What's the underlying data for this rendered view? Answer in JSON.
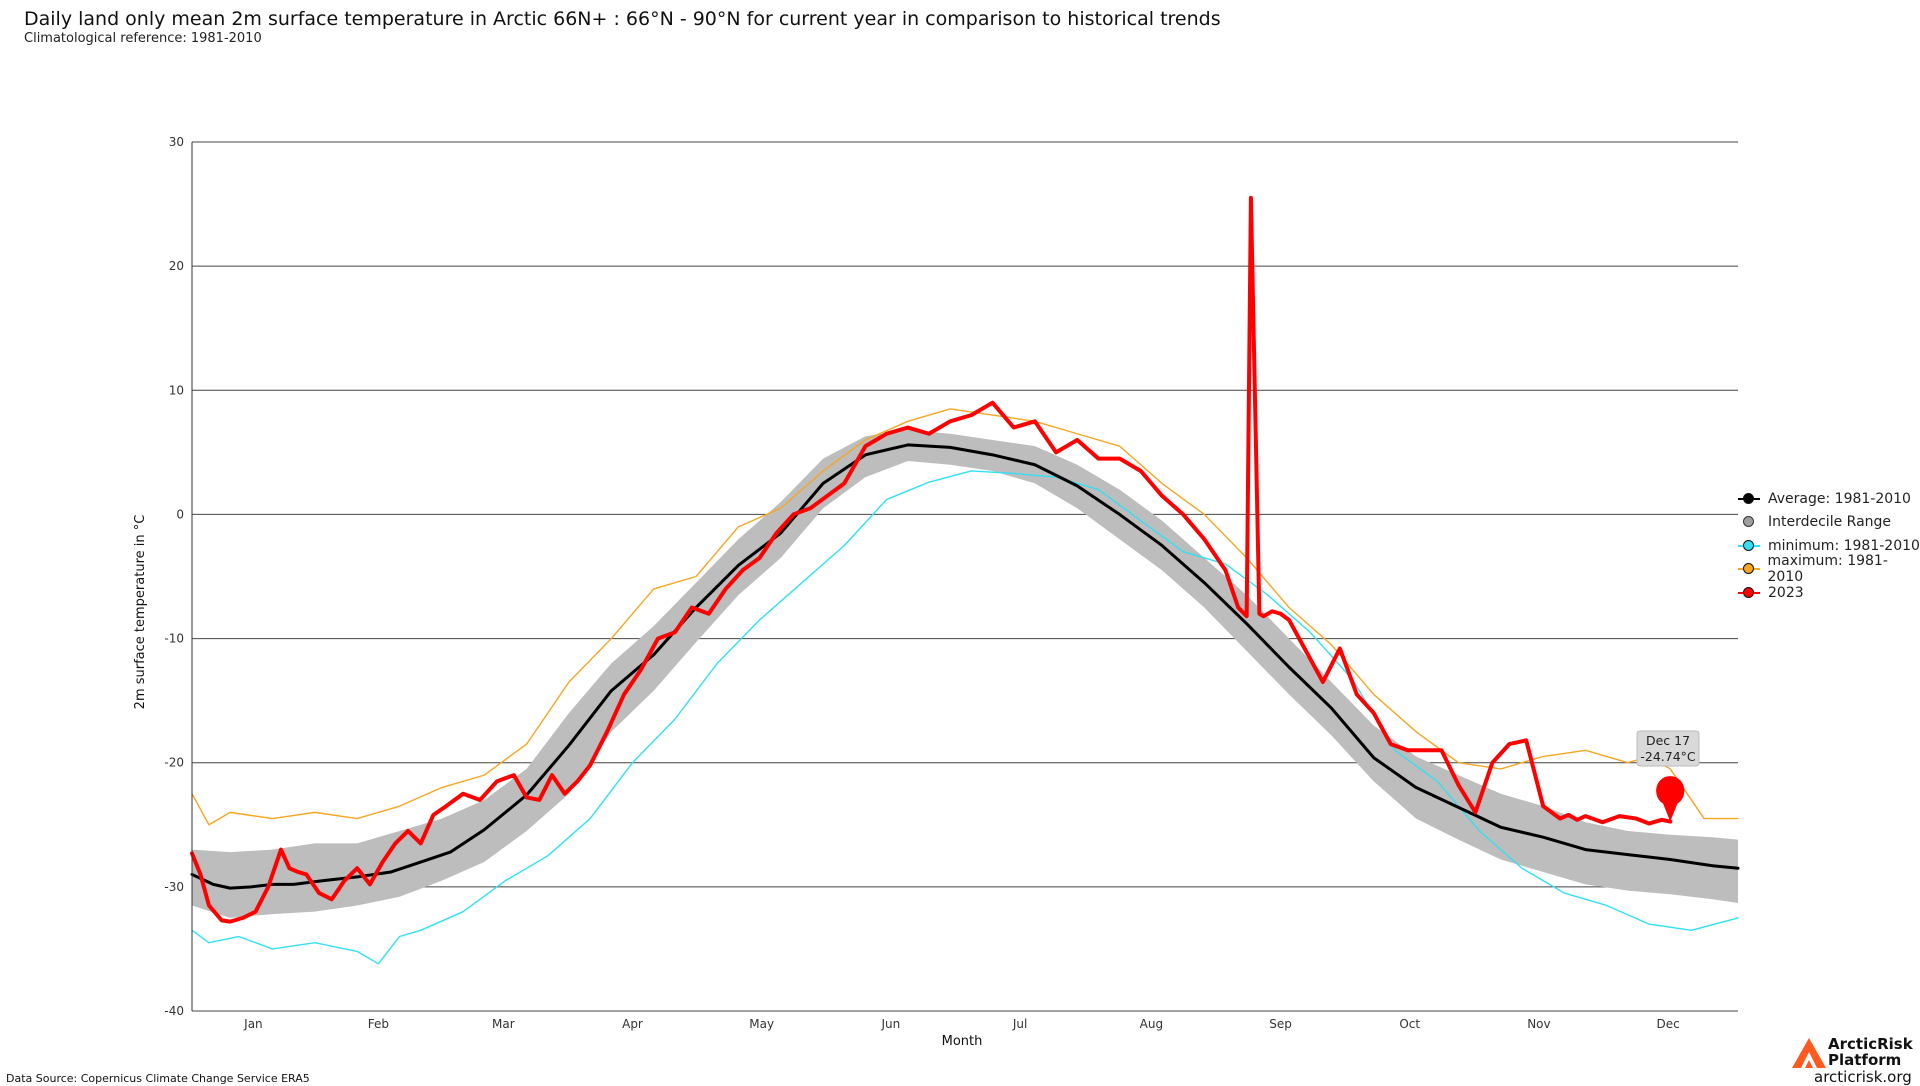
{
  "header": {
    "title": "Daily land only mean 2m surface temperature in Arctic 66N+ : 66°N - 90°N for current year in comparison to historical trends",
    "subtitle": "Climatological reference: 1981-2010"
  },
  "footer": {
    "source": "Data Source: Copernicus Climate Change Service ERA5",
    "logo_line1": "ArcticRisk",
    "logo_line2": "Platform",
    "logo_url": "arcticrisk.org"
  },
  "tooltip": {
    "date": "Dec 17",
    "value": "-24.74°C"
  },
  "colors": {
    "average": "#000000",
    "range": "#bdbdbd",
    "minimum": "#33e0f2",
    "maximum": "#f5a623",
    "current": "#ff0000",
    "grid": "#444444"
  },
  "chart_data": {
    "type": "line",
    "xlabel": "Month",
    "ylabel": "2m surface temperature in °C",
    "ylim": [
      -40,
      30
    ],
    "yticks": [
      30,
      20,
      10,
      0,
      -10,
      -20,
      -30,
      -40
    ],
    "xlim": [
      1,
      366
    ],
    "month_labels": [
      "Jan",
      "Feb",
      "Mar",
      "Apr",
      "May",
      "Jun",
      "Jul",
      "Aug",
      "Sep",
      "Oct",
      "Nov",
      "Dec"
    ],
    "grid": true,
    "legend_position": "right",
    "legend": [
      {
        "key": "average",
        "label": "Average: 1981-2010"
      },
      {
        "key": "range",
        "label": "Interdecile Range"
      },
      {
        "key": "minimum",
        "label": "minimum: 1981-2010"
      },
      {
        "key": "maximum",
        "label": "maximum: 1981-2010"
      },
      {
        "key": "current",
        "label": "2023"
      }
    ],
    "series": [
      {
        "name": "Average: 1981-2010",
        "key": "average",
        "x": [
          1,
          6,
          10,
          15,
          20,
          25,
          32,
          40,
          48,
          55,
          62,
          70,
          80,
          90,
          100,
          110,
          120,
          130,
          140,
          150,
          160,
          170,
          180,
          190,
          200,
          210,
          220,
          230,
          240,
          250,
          260,
          270,
          280,
          290,
          300,
          310,
          320,
          330,
          340,
          350,
          360,
          366
        ],
        "y": [
          -29.0,
          -29.8,
          -30.1,
          -30.0,
          -29.8,
          -29.8,
          -29.5,
          -29.2,
          -28.8,
          -28.0,
          -27.2,
          -25.4,
          -22.6,
          -18.6,
          -14.2,
          -11.3,
          -7.5,
          -4.1,
          -1.5,
          2.5,
          4.8,
          5.6,
          5.4,
          4.8,
          4.0,
          2.3,
          0.0,
          -2.5,
          -5.5,
          -8.8,
          -12.3,
          -15.6,
          -19.6,
          -22.0,
          -23.6,
          -25.2,
          -26.0,
          -27.0,
          -27.4,
          -27.8,
          -28.3,
          -28.5
        ]
      },
      {
        "name": "Interdecile Range (lower)",
        "key": "range_low",
        "x": [
          1,
          10,
          20,
          30,
          40,
          50,
          60,
          70,
          80,
          90,
          100,
          110,
          120,
          130,
          140,
          150,
          160,
          170,
          180,
          190,
          200,
          210,
          220,
          230,
          240,
          250,
          260,
          270,
          280,
          290,
          300,
          310,
          320,
          330,
          340,
          350,
          360,
          366
        ],
        "y": [
          -31.5,
          -32.5,
          -32.2,
          -32.0,
          -31.5,
          -30.8,
          -29.5,
          -28.0,
          -25.5,
          -22.5,
          -17.5,
          -14.2,
          -10.3,
          -6.5,
          -3.5,
          0.5,
          3.0,
          4.3,
          4.0,
          3.5,
          2.5,
          0.5,
          -2.0,
          -4.5,
          -7.5,
          -11.0,
          -14.5,
          -17.8,
          -21.5,
          -24.5,
          -26.2,
          -27.8,
          -28.8,
          -29.8,
          -30.3,
          -30.6,
          -31.0,
          -31.3
        ]
      },
      {
        "name": "Interdecile Range (upper)",
        "key": "range_high",
        "x": [
          1,
          10,
          20,
          30,
          40,
          50,
          60,
          70,
          80,
          90,
          100,
          110,
          120,
          130,
          140,
          150,
          160,
          170,
          180,
          190,
          200,
          210,
          220,
          230,
          240,
          250,
          260,
          270,
          280,
          290,
          300,
          310,
          320,
          330,
          340,
          350,
          360,
          366
        ],
        "y": [
          -27.0,
          -27.2,
          -27.0,
          -26.5,
          -26.5,
          -25.5,
          -24.5,
          -23.0,
          -20.5,
          -16.0,
          -12.0,
          -9.0,
          -5.5,
          -2.0,
          1.0,
          4.5,
          6.3,
          6.8,
          6.5,
          6.0,
          5.5,
          4.0,
          2.0,
          -0.5,
          -3.5,
          -6.5,
          -10.0,
          -13.5,
          -17.0,
          -19.5,
          -21.0,
          -22.5,
          -23.5,
          -24.8,
          -25.5,
          -25.8,
          -26.0,
          -26.2
        ]
      },
      {
        "name": "minimum: 1981-2010",
        "key": "minimum",
        "x": [
          1,
          5,
          12,
          20,
          30,
          40,
          45,
          50,
          55,
          65,
          75,
          85,
          95,
          105,
          115,
          125,
          135,
          145,
          155,
          165,
          175,
          185,
          195,
          205,
          215,
          225,
          235,
          245,
          255,
          265,
          275,
          285,
          295,
          305,
          315,
          325,
          335,
          345,
          355,
          366
        ],
        "y": [
          -33.5,
          -34.5,
          -34.0,
          -35.0,
          -34.5,
          -35.2,
          -36.2,
          -34.0,
          -33.5,
          -32.0,
          -29.5,
          -27.5,
          -24.5,
          -20.0,
          -16.5,
          -12.0,
          -8.5,
          -5.5,
          -2.5,
          1.2,
          2.6,
          3.5,
          3.3,
          3.0,
          2.0,
          -0.5,
          -3.0,
          -4.0,
          -6.5,
          -9.5,
          -13.3,
          -19.0,
          -21.5,
          -25.5,
          -28.5,
          -30.5,
          -31.5,
          -33.0,
          -33.5,
          -32.5
        ]
      },
      {
        "name": "maximum: 1981-2010",
        "key": "maximum",
        "x": [
          1,
          5,
          10,
          20,
          30,
          40,
          50,
          60,
          70,
          80,
          90,
          100,
          110,
          120,
          130,
          140,
          150,
          160,
          170,
          180,
          190,
          200,
          210,
          220,
          230,
          240,
          250,
          260,
          270,
          280,
          290,
          300,
          310,
          320,
          330,
          340,
          345,
          350,
          358,
          366
        ],
        "y": [
          -22.5,
          -25.0,
          -24.0,
          -24.5,
          -24.0,
          -24.5,
          -23.5,
          -22.0,
          -21.0,
          -18.5,
          -13.5,
          -10.0,
          -6.0,
          -5.0,
          -1.0,
          0.5,
          3.5,
          6.0,
          7.5,
          8.5,
          8.0,
          7.5,
          6.5,
          5.5,
          2.5,
          0.0,
          -3.5,
          -7.5,
          -10.5,
          -14.5,
          -17.5,
          -20.0,
          -20.5,
          -19.5,
          -19.0,
          -20.0,
          -19.5,
          -20.5,
          -24.5,
          -24.5
        ]
      },
      {
        "name": "2023",
        "key": "current",
        "x": [
          1,
          3,
          5,
          8,
          10,
          13,
          16,
          19,
          22,
          24,
          26,
          28,
          31,
          34,
          37,
          40,
          43,
          46,
          49,
          52,
          55,
          58,
          61,
          65,
          69,
          73,
          77,
          80,
          83,
          86,
          89,
          92,
          95,
          99,
          103,
          107,
          111,
          115,
          119,
          123,
          127,
          131,
          135,
          139,
          143,
          147,
          151,
          155,
          160,
          165,
          170,
          175,
          180,
          185,
          190,
          195,
          200,
          205,
          210,
          215,
          220,
          225,
          230,
          235,
          240,
          245,
          248,
          250,
          251,
          253,
          254,
          256,
          258,
          260,
          264,
          268,
          272,
          276,
          280,
          284,
          288,
          292,
          296,
          300,
          304,
          308,
          312,
          316,
          320,
          324,
          326,
          328,
          330,
          334,
          338,
          342,
          345,
          348,
          350
        ],
        "y": [
          -27.3,
          -29.0,
          -31.5,
          -32.7,
          -32.8,
          -32.5,
          -32.0,
          -30.0,
          -27.0,
          -28.5,
          -28.8,
          -29.0,
          -30.5,
          -31.0,
          -29.5,
          -28.5,
          -29.8,
          -28.0,
          -26.5,
          -25.5,
          -26.5,
          -24.2,
          -23.5,
          -22.5,
          -23.0,
          -21.5,
          -21.0,
          -22.8,
          -23.0,
          -21.0,
          -22.5,
          -21.5,
          -20.2,
          -17.5,
          -14.5,
          -12.5,
          -10.0,
          -9.5,
          -7.5,
          -8.0,
          -6.0,
          -4.5,
          -3.5,
          -1.5,
          0.0,
          0.5,
          1.5,
          2.5,
          5.5,
          6.5,
          7.0,
          6.5,
          7.5,
          8.0,
          9.0,
          7.0,
          7.5,
          5.0,
          6.0,
          4.5,
          4.5,
          3.5,
          1.5,
          0.0,
          -2.0,
          -4.5,
          -7.5,
          -8.2,
          25.5,
          -8.0,
          -8.2,
          -7.8,
          -8.0,
          -8.5,
          -11.0,
          -13.5,
          -10.8,
          -14.5,
          -16.0,
          -18.5,
          -19.0,
          -19.0,
          -19.0,
          -21.8,
          -24.0,
          -20.0,
          -18.5,
          -18.2,
          -23.5,
          -24.5,
          -24.2,
          -24.6,
          -24.3,
          -24.8,
          -24.3,
          -24.5,
          -24.9,
          -24.6,
          -24.74
        ]
      }
    ],
    "annotation": {
      "x": 350,
      "y": -24.74,
      "label_line1": "Dec 17",
      "label_line2": "-24.74°C"
    }
  }
}
